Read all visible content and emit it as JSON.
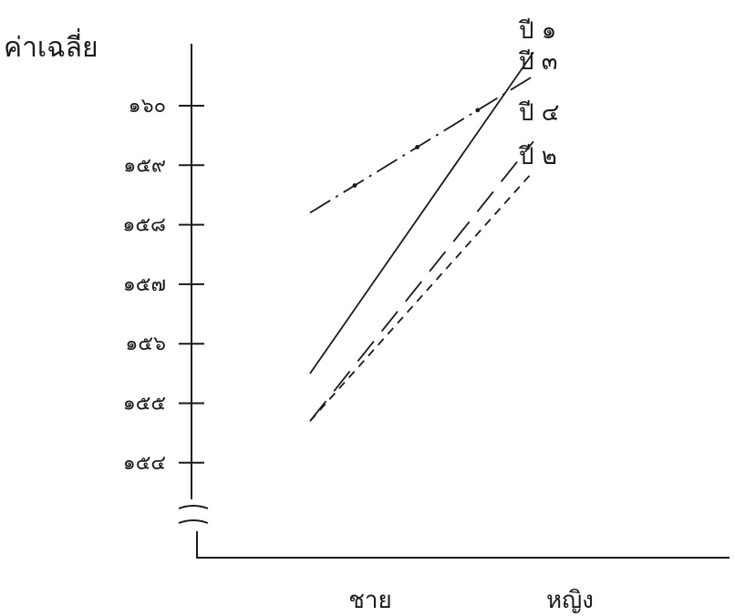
{
  "chart_data": {
    "type": "line",
    "ylabel": "ค่าเฉลี่ย",
    "categories": [
      "ชาย",
      "หญิง"
    ],
    "yticks": [
      "๑๕๔",
      "๑๕๕",
      "๑๕๖",
      "๑๕๗",
      "๑๕๘",
      "๑๕๙",
      "๑๖๐"
    ],
    "ytick_values": [
      154,
      155,
      156,
      157,
      158,
      159,
      160
    ],
    "axis_break": true,
    "series": [
      {
        "name": "ปี ๑",
        "values": [
          155.5,
          160.9
        ],
        "style": "solid"
      },
      {
        "name": "ปี ๓",
        "values": [
          158.2,
          160.5
        ],
        "style": "dash-dot"
      },
      {
        "name": "ปี ๔",
        "values": [
          154.7,
          159.4
        ],
        "style": "long-dash"
      },
      {
        "name": "ปี ๒",
        "values": [
          154.7,
          158.9
        ],
        "style": "short-dash"
      }
    ]
  }
}
